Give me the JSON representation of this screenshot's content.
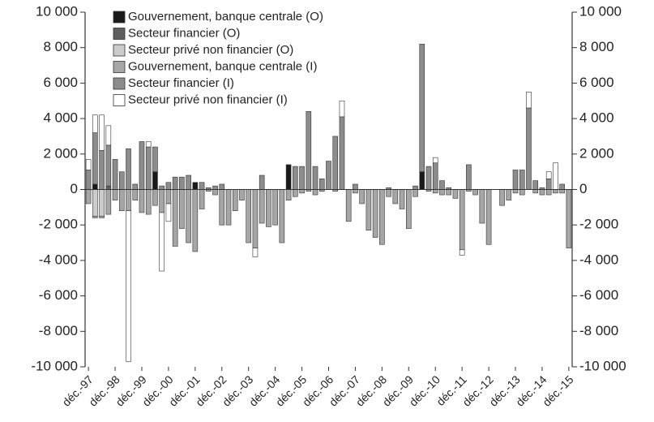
{
  "chart_data": {
    "type": "stacked_bar",
    "categories": [
      "déc.-97",
      null,
      null,
      null,
      "déc.-98",
      null,
      null,
      null,
      "déc.-99",
      null,
      null,
      null,
      "déc.-00",
      null,
      null,
      null,
      "déc.-01",
      null,
      null,
      null,
      "déc.-02",
      null,
      null,
      null,
      "déc.-03",
      null,
      null,
      null,
      "déc.-04",
      null,
      null,
      null,
      "déc.-05",
      null,
      null,
      null,
      "déc.-06",
      null,
      null,
      null,
      "déc.-07",
      null,
      null,
      null,
      "déc.-08",
      null,
      null,
      null,
      "déc.-09",
      null,
      null,
      null,
      "déc.-10",
      null,
      null,
      null,
      "déc.-11",
      null,
      null,
      null,
      "déc.-12",
      null,
      null,
      null,
      "déc.-13",
      null,
      null,
      null,
      "déc.-14",
      null,
      null,
      null,
      "déc.-15"
    ],
    "series": [
      {
        "name": "Gouvernement, banque centrale (O)",
        "color": "#1a1a1a",
        "values": [
          0,
          300,
          0,
          0,
          0,
          0,
          0,
          0,
          0,
          0,
          1000,
          0,
          0,
          0,
          0,
          0,
          400,
          0,
          0,
          0,
          0,
          0,
          0,
          0,
          0,
          0,
          0,
          0,
          0,
          0,
          1400,
          0,
          0,
          0,
          0,
          0,
          0,
          0,
          0,
          0,
          0,
          0,
          0,
          0,
          0,
          0,
          0,
          0,
          0,
          0,
          1000,
          0,
          0,
          0,
          0,
          0,
          0,
          0,
          0,
          0,
          0,
          0,
          0,
          0,
          0,
          0,
          0,
          0,
          0,
          0,
          0,
          0,
          0
        ]
      },
      {
        "name": "Secteur financier (O)",
        "color": "#5e5e5e",
        "values": [
          0,
          0,
          0,
          200,
          0,
          0,
          0,
          0,
          0,
          0,
          0,
          0,
          0,
          0,
          0,
          0,
          0,
          0,
          0,
          0,
          0,
          0,
          0,
          0,
          0,
          0,
          0,
          0,
          0,
          0,
          0,
          0,
          0,
          0,
          0,
          0,
          0,
          0,
          0,
          0,
          0,
          0,
          0,
          0,
          0,
          0,
          0,
          0,
          0,
          0,
          0,
          0,
          0,
          0,
          0,
          0,
          0,
          0,
          0,
          0,
          0,
          0,
          0,
          0,
          0,
          0,
          0,
          0,
          0,
          0,
          0,
          0,
          0
        ]
      },
      {
        "name": "Secteur privé non financier (O)",
        "color": "#cccccc",
        "values": [
          0,
          -1500,
          -1500,
          0,
          0,
          0,
          0,
          0,
          0,
          0,
          0,
          0,
          0,
          0,
          0,
          0,
          0,
          0,
          0,
          0,
          0,
          0,
          0,
          0,
          0,
          0,
          0,
          0,
          0,
          0,
          0,
          0,
          0,
          0,
          0,
          0,
          0,
          0,
          0,
          0,
          0,
          0,
          0,
          0,
          0,
          0,
          0,
          0,
          0,
          0,
          0,
          0,
          0,
          0,
          0,
          0,
          0,
          0,
          0,
          0,
          0,
          0,
          0,
          0,
          0,
          0,
          0,
          0,
          0,
          0,
          0,
          0,
          0
        ]
      },
      {
        "name": "Gouvernement, banque centrale (I)",
        "color": "#a6a6a6",
        "values": [
          -800,
          -100,
          -100,
          -1400,
          -600,
          -1200,
          -1200,
          -600,
          -1300,
          -1400,
          -900,
          -1300,
          -800,
          -3200,
          -2200,
          -3000,
          -3500,
          -1100,
          -100,
          -300,
          -2000,
          -2000,
          -1200,
          -600,
          -3000,
          -3300,
          -1900,
          -2100,
          -2000,
          -3000,
          -600,
          -400,
          -200,
          -100,
          -300,
          -100,
          0,
          -100,
          0,
          -1800,
          -200,
          -800,
          -2300,
          -2700,
          -3100,
          -400,
          -800,
          -1100,
          -2200,
          -400,
          0,
          -100,
          -200,
          -300,
          -300,
          -500,
          -3400,
          -100,
          -300,
          -1900,
          -3100,
          0,
          -900,
          -600,
          -200,
          -300,
          0,
          -200,
          -300,
          -300,
          -200,
          -200,
          -3300
        ]
      },
      {
        "name": "Secteur financier (I)",
        "color": "#8c8c8c",
        "values": [
          1100,
          2900,
          2200,
          2300,
          1700,
          1000,
          2300,
          300,
          2700,
          2400,
          1400,
          200,
          400,
          700,
          700,
          800,
          0,
          400,
          100,
          200,
          300,
          0,
          0,
          0,
          0,
          0,
          800,
          0,
          0,
          0,
          0,
          1300,
          1300,
          4400,
          1300,
          600,
          1600,
          3000,
          4100,
          0,
          300,
          0,
          0,
          0,
          0,
          100,
          0,
          0,
          0,
          200,
          7200,
          1300,
          1500,
          500,
          100,
          0,
          0,
          1400,
          0,
          0,
          0,
          0,
          0,
          0,
          1100,
          1100,
          4600,
          500,
          100,
          600,
          0,
          300,
          0
        ]
      },
      {
        "name": "Secteur privé non financier (I)",
        "color": "#ffffff",
        "values": [
          600,
          1000,
          2000,
          1100,
          0,
          0,
          -8500,
          0,
          0,
          300,
          0,
          -3300,
          -1000,
          0,
          0,
          0,
          0,
          0,
          0,
          0,
          0,
          0,
          0,
          0,
          0,
          -500,
          0,
          0,
          0,
          0,
          0,
          0,
          0,
          0,
          0,
          0,
          0,
          0,
          900,
          0,
          0,
          0,
          0,
          0,
          0,
          0,
          0,
          0,
          0,
          0,
          0,
          0,
          300,
          0,
          0,
          0,
          -300,
          0,
          0,
          0,
          0,
          0,
          0,
          0,
          0,
          0,
          900,
          0,
          0,
          400,
          1500,
          0,
          0
        ]
      }
    ],
    "ylim": [
      -10000,
      10000
    ],
    "yticks": [
      {
        "value": -10000,
        "label": "-10 000"
      },
      {
        "value": -8000,
        "label": "-8 000"
      },
      {
        "value": -6000,
        "label": "-6 000"
      },
      {
        "value": -4000,
        "label": "-4 000"
      },
      {
        "value": -2000,
        "label": "-2 000"
      },
      0,
      {
        "value": 2000,
        "label": "2 000"
      },
      {
        "value": 4000,
        "label": "4 000"
      },
      {
        "value": 6000,
        "label": "6 000"
      },
      {
        "value": 8000,
        "label": "8 000"
      },
      {
        "value": 10000,
        "label": "10 000"
      }
    ],
    "legend": "upper left"
  }
}
